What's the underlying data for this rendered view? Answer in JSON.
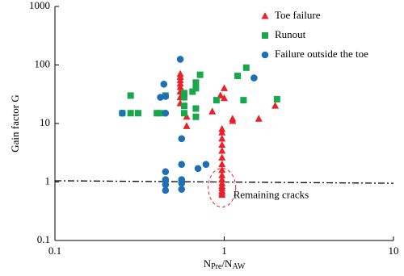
{
  "chart_data": {
    "type": "scatter",
    "xlabel": [
      "N",
      "Pre",
      "/N",
      "AW"
    ],
    "ylabel": "Gain factor  G",
    "xscale": "log",
    "yscale": "log",
    "xlim": [
      0.1,
      10
    ],
    "ylim": [
      0.1,
      1000
    ],
    "xticks": [
      0.1,
      1,
      10
    ],
    "yticks": [
      0.1,
      1,
      10,
      100,
      1000
    ],
    "legend": "upper right",
    "reference_line": {
      "x": [
        0.1,
        10
      ],
      "y": [
        1.05,
        0.95
      ]
    },
    "annotation": "Remaining cracks",
    "series": [
      {
        "name": "Toe failure",
        "color": "#e8222a",
        "marker": "triangle",
        "x": [
          0.55,
          0.55,
          0.55,
          0.55,
          0.55,
          0.55,
          0.55,
          0.55,
          0.6,
          0.6,
          0.85,
          0.95,
          1.0,
          1.0,
          1.12,
          1.12,
          1.6,
          2.0,
          0.97,
          0.97,
          0.97,
          0.97,
          0.97,
          0.97,
          0.97,
          0.97,
          0.97,
          0.97,
          0.97,
          0.97,
          0.97,
          0.97,
          0.97,
          0.97
        ],
        "values": [
          70,
          62,
          55,
          48,
          42,
          35,
          28,
          22,
          13,
          9,
          16,
          30,
          40,
          27,
          12,
          11,
          12,
          20,
          8,
          7,
          5.5,
          4.3,
          3.4,
          2.6,
          2,
          1.6,
          1.3,
          1.1,
          0.95,
          0.85,
          0.78,
          0.7,
          0.65,
          0.6
        ]
      },
      {
        "name": "Runout",
        "color": "#1aa64a",
        "marker": "square",
        "x": [
          0.25,
          0.28,
          0.28,
          0.31,
          0.4,
          0.42,
          0.45,
          0.58,
          0.58,
          0.58,
          0.58,
          0.65,
          0.68,
          0.68,
          0.68,
          0.68,
          0.72,
          0.9,
          1.2,
          1.3,
          1.35,
          2.05
        ],
        "values": [
          15,
          30,
          15,
          15,
          15,
          15,
          30,
          33,
          28,
          20,
          15,
          35,
          50,
          40,
          18,
          13,
          68,
          25,
          65,
          25,
          90,
          26
        ]
      },
      {
        "name": "Failure outside the toe",
        "color": "#1f6fb5",
        "marker": "circle",
        "x": [
          0.25,
          0.42,
          0.44,
          0.45,
          0.45,
          0.45,
          0.45,
          0.45,
          0.45,
          0.55,
          0.56,
          0.56,
          0.56,
          0.56,
          0.56,
          0.7,
          0.78,
          1.5
        ],
        "values": [
          15,
          28,
          47,
          29,
          15,
          1.5,
          1.1,
          0.9,
          0.72,
          125,
          5.5,
          2,
          1.1,
          0.95,
          0.75,
          1.7,
          2,
          60
        ]
      }
    ]
  }
}
